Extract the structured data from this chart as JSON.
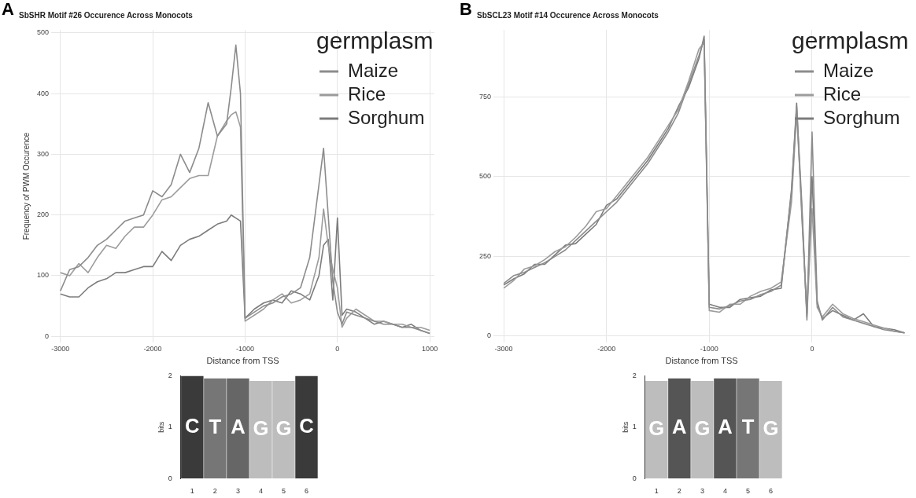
{
  "chart_data": [
    {
      "type": "line",
      "title": "SbSHR Motif #26 Occurence Across Monocots",
      "annotations": [
        "A"
      ],
      "xlabel": "Distance from TSS",
      "ylabel": "Frequency of PWM Occurence",
      "legend_title": "germplasm",
      "legend": "top right",
      "grid": true,
      "x": [
        -3000,
        -2900,
        -2800,
        -2700,
        -2600,
        -2500,
        -2400,
        -2300,
        -2200,
        -2100,
        -2000,
        -1900,
        -1800,
        -1700,
        -1600,
        -1500,
        -1400,
        -1300,
        -1200,
        -1150,
        -1100,
        -1050,
        -1000,
        -900,
        -800,
        -700,
        -600,
        -500,
        -400,
        -300,
        -200,
        -150,
        -100,
        -50,
        0,
        50,
        100,
        200,
        300,
        400,
        500,
        600,
        700,
        800,
        900,
        1000
      ],
      "xlim": [
        -3100,
        1050
      ],
      "xticks": [
        -3000,
        -2000,
        -1000,
        0,
        1000
      ],
      "ylim": [
        -10,
        505
      ],
      "yticks": [
        0,
        100,
        200,
        300,
        400,
        500
      ],
      "series": [
        {
          "name": "Maize",
          "color": "#8c8c8c",
          "values": [
            75,
            110,
            115,
            130,
            150,
            160,
            175,
            190,
            195,
            200,
            240,
            230,
            250,
            300,
            270,
            310,
            385,
            330,
            350,
            410,
            480,
            400,
            30,
            40,
            50,
            55,
            65,
            70,
            80,
            130,
            250,
            310,
            200,
            90,
            40,
            20,
            40,
            35,
            30,
            25,
            20,
            20,
            15,
            15,
            10,
            5
          ]
        },
        {
          "name": "Rice",
          "color": "#9c9c9c",
          "values": [
            105,
            100,
            120,
            105,
            130,
            150,
            145,
            165,
            180,
            180,
            200,
            225,
            230,
            245,
            260,
            265,
            265,
            330,
            355,
            365,
            370,
            345,
            25,
            35,
            45,
            60,
            70,
            55,
            60,
            70,
            130,
            210,
            150,
            110,
            80,
            15,
            30,
            45,
            35,
            25,
            25,
            20,
            20,
            15,
            15,
            10
          ]
        },
        {
          "name": "Sorghum",
          "color": "#7c7c7c",
          "values": [
            70,
            65,
            65,
            80,
            90,
            95,
            105,
            105,
            110,
            115,
            115,
            140,
            125,
            150,
            160,
            165,
            175,
            185,
            190,
            200,
            195,
            190,
            30,
            45,
            55,
            60,
            55,
            75,
            70,
            60,
            100,
            150,
            160,
            60,
            195,
            35,
            45,
            40,
            30,
            20,
            25,
            20,
            15,
            20,
            10,
            5
          ]
        }
      ]
    },
    {
      "type": "line",
      "title": "SbSCL23 Motif #14 Occurence Across Monocots",
      "annotations": [
        "B"
      ],
      "xlabel": "Distance from TSS",
      "legend_title": "germplasm",
      "legend": "top right",
      "grid": true,
      "x": [
        -3000,
        -2900,
        -2800,
        -2700,
        -2600,
        -2500,
        -2400,
        -2300,
        -2200,
        -2100,
        -2000,
        -1900,
        -1800,
        -1700,
        -1600,
        -1500,
        -1400,
        -1300,
        -1200,
        -1100,
        -1050,
        -1000,
        -900,
        -800,
        -700,
        -600,
        -500,
        -400,
        -300,
        -200,
        -150,
        -100,
        -50,
        0,
        50,
        100,
        200,
        300,
        400,
        500,
        600,
        700,
        800,
        900
      ],
      "xlim": [
        -3100,
        950
      ],
      "xticks": [
        -3000,
        -2000,
        -1000,
        0
      ],
      "ylim": [
        -20,
        960
      ],
      "yticks": [
        0,
        250,
        500,
        750
      ],
      "series": [
        {
          "name": "Maize",
          "color": "#8c8c8c",
          "values": [
            165,
            190,
            200,
            215,
            230,
            250,
            270,
            300,
            330,
            360,
            390,
            420,
            460,
            500,
            540,
            590,
            640,
            700,
            790,
            880,
            930,
            90,
            85,
            95,
            110,
            115,
            130,
            140,
            160,
            450,
            720,
            420,
            50,
            640,
            110,
            50,
            90,
            60,
            50,
            40,
            30,
            20,
            15,
            10
          ]
        },
        {
          "name": "Rice",
          "color": "#9c9c9c",
          "values": [
            150,
            175,
            210,
            220,
            240,
            265,
            280,
            310,
            345,
            390,
            400,
            440,
            480,
            520,
            560,
            610,
            660,
            710,
            800,
            900,
            920,
            80,
            75,
            100,
            100,
            125,
            140,
            150,
            170,
            420,
            700,
            400,
            60,
            400,
            90,
            60,
            100,
            70,
            55,
            45,
            35,
            25,
            15,
            10
          ]
        },
        {
          "name": "Sorghum",
          "color": "#7c7c7c",
          "values": [
            160,
            180,
            195,
            225,
            225,
            255,
            285,
            290,
            320,
            350,
            410,
            430,
            470,
            510,
            550,
            600,
            650,
            720,
            780,
            870,
            940,
            100,
            90,
            90,
            115,
            120,
            125,
            145,
            150,
            460,
            730,
            380,
            70,
            500,
            100,
            55,
            80,
            65,
            50,
            70,
            30,
            25,
            20,
            10
          ]
        }
      ]
    },
    {
      "type": "bar",
      "ylabel": "bits",
      "categories": [
        "1",
        "2",
        "3",
        "4",
        "5",
        "6"
      ],
      "ylim": [
        0,
        2
      ],
      "yticks": [
        0,
        1,
        2
      ],
      "values": [
        2,
        1.95,
        1.95,
        1.9,
        1.9,
        2
      ],
      "colors": [
        "#3a3a3a",
        "#767676",
        "#666666",
        "#bdbdbd",
        "#bdbdbd",
        "#3a3a3a"
      ],
      "value_labels": [
        "C",
        "T",
        "A",
        "G",
        "G",
        "C"
      ]
    },
    {
      "type": "bar",
      "ylabel": "bits",
      "categories": [
        "1",
        "2",
        "3",
        "4",
        "5",
        "6"
      ],
      "ylim": [
        0,
        2
      ],
      "yticks": [
        0,
        1,
        2
      ],
      "values": [
        1.9,
        1.95,
        1.9,
        1.95,
        1.95,
        1.9
      ],
      "colors": [
        "#bdbdbd",
        "#555555",
        "#bdbdbd",
        "#555555",
        "#767676",
        "#bdbdbd"
      ],
      "value_labels": [
        "G",
        "A",
        "G",
        "A",
        "T",
        "G"
      ]
    }
  ]
}
